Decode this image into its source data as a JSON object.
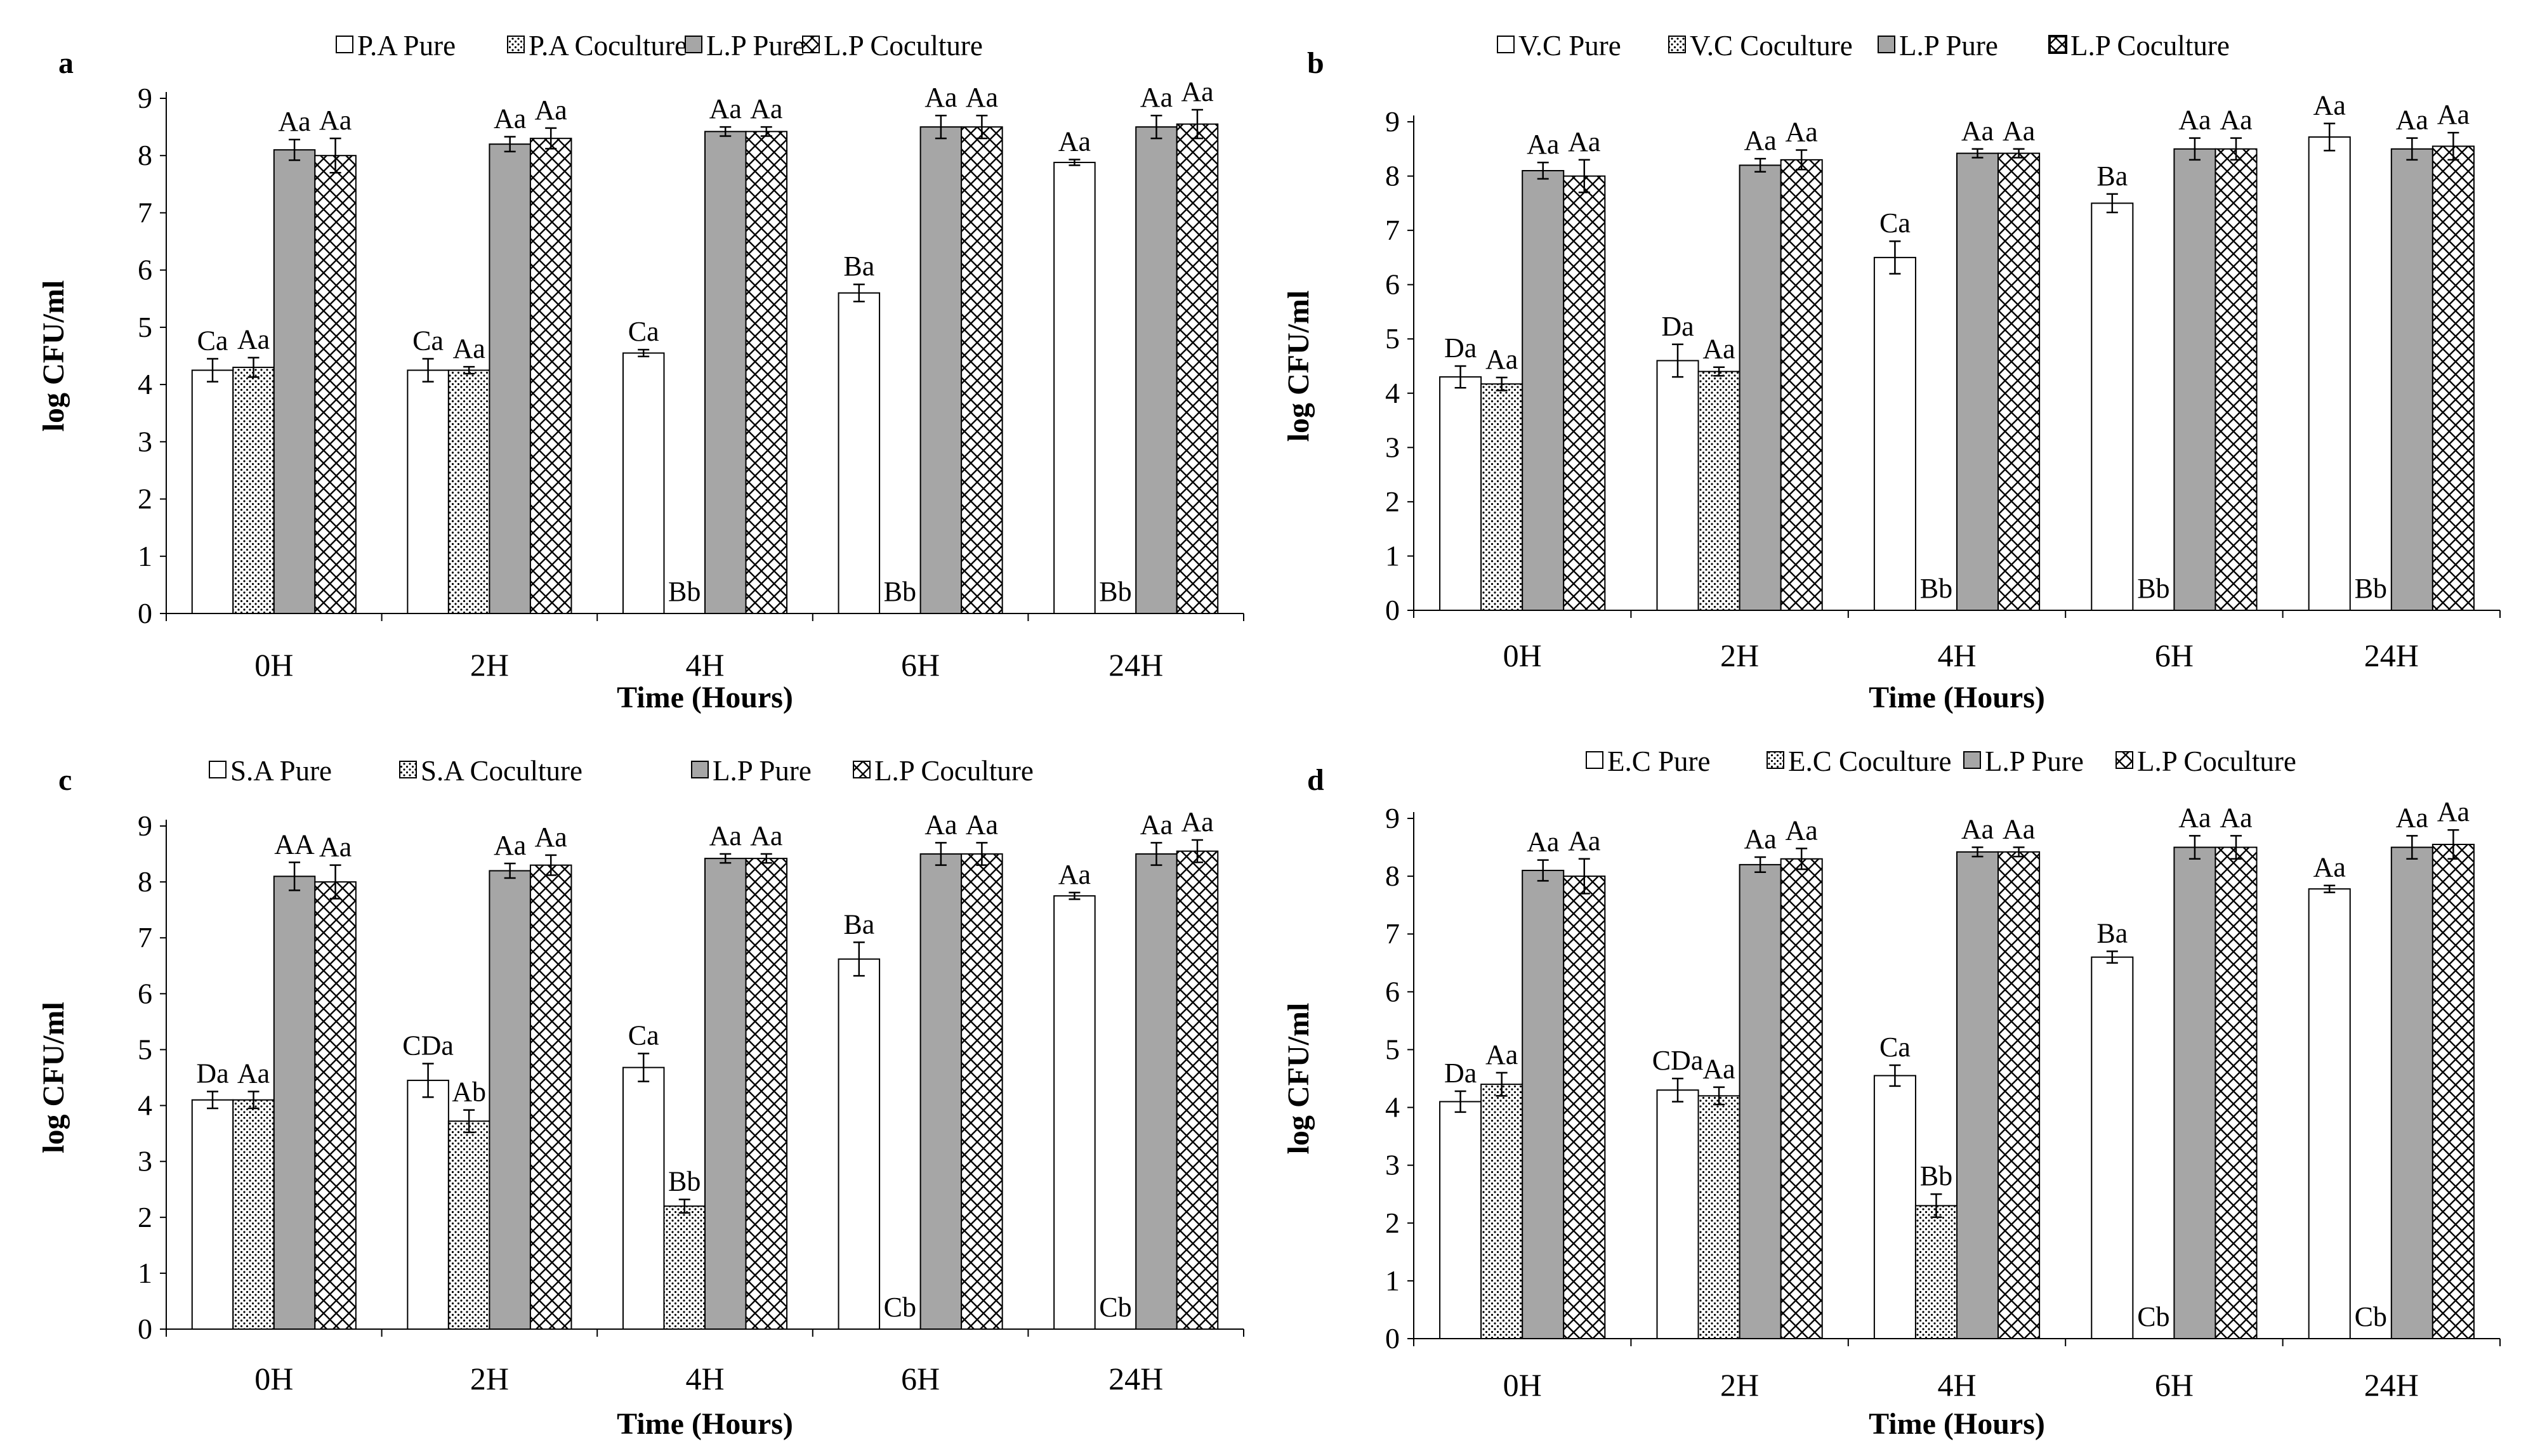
{
  "colors": {
    "lp_pure": "#a6a6a6",
    "stroke": "#000000",
    "background": "#ffffff"
  },
  "chart_data": [
    {
      "panel": "a",
      "type": "bar",
      "categories": [
        "0H",
        "2H",
        "4H",
        "6H",
        "24H"
      ],
      "xlabel": "Time (Hours)",
      "ylabel": "log CFU/ml",
      "ylim": [
        0,
        9
      ],
      "yticks": [
        "0",
        "1",
        "2",
        "3",
        "4",
        "5",
        "6",
        "7",
        "8",
        "9"
      ],
      "series": [
        {
          "name": "P.A Pure",
          "pattern": "blank",
          "values": [
            4.25,
            4.25,
            4.55,
            5.6,
            7.88
          ],
          "errors": [
            0.2,
            0.2,
            0.06,
            0.15,
            0.05
          ],
          "labels": [
            "Ca",
            "Ca",
            "Ca",
            "Ba",
            "Aa"
          ]
        },
        {
          "name": "P.A Coculture",
          "pattern": "dots",
          "values": [
            4.3,
            4.25,
            0,
            0,
            0
          ],
          "errors": [
            0.17,
            0.06,
            0,
            0,
            0
          ],
          "labels": [
            "Aa",
            "Aa",
            "Bb",
            "Bb",
            "Bb"
          ]
        },
        {
          "name": "L.P Pure",
          "pattern": "gray",
          "values": [
            8.1,
            8.2,
            8.42,
            8.5,
            8.5
          ],
          "errors": [
            0.18,
            0.13,
            0.08,
            0.2,
            0.2
          ],
          "labels": [
            "Aa",
            "Aa",
            "Aa",
            "Aa",
            "Aa"
          ]
        },
        {
          "name": "L.P Coculture",
          "pattern": "cross",
          "values": [
            8.0,
            8.3,
            8.42,
            8.5,
            8.55
          ],
          "errors": [
            0.3,
            0.18,
            0.08,
            0.2,
            0.25
          ],
          "labels": [
            "Aa",
            "Aa",
            "Aa",
            "Aa",
            "Aa"
          ]
        }
      ]
    },
    {
      "panel": "b",
      "type": "bar",
      "categories": [
        "0H",
        "2H",
        "4H",
        "6H",
        "24H"
      ],
      "xlabel": "Time (Hours)",
      "ylabel": "log CFU/ml",
      "ylim": [
        0,
        9
      ],
      "yticks": [
        "0",
        "1",
        "2",
        "3",
        "4",
        "5",
        "6",
        "7",
        "8",
        "9"
      ],
      "series": [
        {
          "name": "V.C Pure",
          "pattern": "blank",
          "values": [
            4.3,
            4.6,
            6.5,
            7.5,
            8.72
          ],
          "errors": [
            0.2,
            0.3,
            0.3,
            0.17,
            0.25
          ],
          "labels": [
            "Da",
            "Da",
            "Ca",
            "Ba",
            "Aa"
          ]
        },
        {
          "name": "V.C Coculture",
          "pattern": "dots",
          "values": [
            4.17,
            4.4,
            0,
            0,
            0
          ],
          "errors": [
            0.12,
            0.08,
            0,
            0,
            0
          ],
          "labels": [
            "Aa",
            "Aa",
            "Bb",
            "Bb",
            "Bb"
          ]
        },
        {
          "name": "L.P Pure",
          "pattern": "gray",
          "values": [
            8.1,
            8.2,
            8.42,
            8.5,
            8.5
          ],
          "errors": [
            0.15,
            0.12,
            0.08,
            0.2,
            0.2
          ],
          "labels": [
            "Aa",
            "Aa",
            "Aa",
            "Aa",
            "Aa"
          ]
        },
        {
          "name": "L.P Coculture",
          "pattern": "boxcross",
          "values": [
            8.0,
            8.3,
            8.42,
            8.5,
            8.55
          ],
          "errors": [
            0.3,
            0.18,
            0.08,
            0.2,
            0.25
          ],
          "labels": [
            "Aa",
            "Aa",
            "Aa",
            "Aa",
            "Aa"
          ]
        }
      ]
    },
    {
      "panel": "c",
      "type": "bar",
      "categories": [
        "0H",
        "2H",
        "4H",
        "6H",
        "24H"
      ],
      "xlabel": "Time (Hours)",
      "ylabel": "log CFU/ml",
      "ylim": [
        0,
        9
      ],
      "yticks": [
        "0",
        "1",
        "2",
        "3",
        "4",
        "5",
        "6",
        "7",
        "8",
        "9"
      ],
      "series": [
        {
          "name": "S.A Pure",
          "pattern": "blank",
          "values": [
            4.1,
            4.45,
            4.68,
            6.62,
            7.75
          ],
          "errors": [
            0.15,
            0.3,
            0.25,
            0.3,
            0.06
          ],
          "labels": [
            "Da",
            "CDa",
            "Ca",
            "Ba",
            "Aa"
          ]
        },
        {
          "name": "S.A Coculture",
          "pattern": "dots",
          "values": [
            4.1,
            3.72,
            2.2,
            0,
            0
          ],
          "errors": [
            0.15,
            0.2,
            0.12,
            0,
            0
          ],
          "labels": [
            "Aa",
            "Ab",
            "Bb",
            "Cb",
            "Cb"
          ]
        },
        {
          "name": "L.P Pure",
          "pattern": "gray",
          "values": [
            8.1,
            8.2,
            8.42,
            8.5,
            8.5
          ],
          "errors": [
            0.25,
            0.13,
            0.08,
            0.2,
            0.2
          ],
          "labels": [
            "AA",
            "Aa",
            "Aa",
            "Aa",
            "Aa"
          ]
        },
        {
          "name": "L.P Coculture",
          "pattern": "cross",
          "values": [
            8.0,
            8.3,
            8.42,
            8.5,
            8.55
          ],
          "errors": [
            0.3,
            0.18,
            0.08,
            0.2,
            0.2
          ],
          "labels": [
            "Aa",
            "Aa",
            "Aa",
            "Aa",
            "Aa"
          ]
        }
      ]
    },
    {
      "panel": "d",
      "type": "bar",
      "categories": [
        "0H",
        "2H",
        "4H",
        "6H",
        "24H"
      ],
      "xlabel": "Time (Hours)",
      "ylabel": "log CFU/ml",
      "ylim": [
        0,
        9
      ],
      "yticks": [
        "0",
        "1",
        "2",
        "3",
        "4",
        "5",
        "6",
        "7",
        "8",
        "9"
      ],
      "series": [
        {
          "name": "E.C Pure",
          "pattern": "blank",
          "values": [
            4.1,
            4.3,
            4.55,
            6.6,
            7.78
          ],
          "errors": [
            0.18,
            0.2,
            0.18,
            0.1,
            0.06
          ],
          "labels": [
            "Da",
            "CDa",
            "Ca",
            "Ba",
            "Aa"
          ]
        },
        {
          "name": "E.C Coculture",
          "pattern": "dots",
          "values": [
            4.4,
            4.2,
            2.3,
            0,
            0
          ],
          "errors": [
            0.2,
            0.15,
            0.2,
            0,
            0
          ],
          "labels": [
            "Aa",
            "Aa",
            "Bb",
            "Cb",
            "Cb"
          ]
        },
        {
          "name": "L.P Pure",
          "pattern": "gray",
          "values": [
            8.1,
            8.2,
            8.42,
            8.5,
            8.5
          ],
          "errors": [
            0.18,
            0.13,
            0.08,
            0.2,
            0.2
          ],
          "labels": [
            "Aa",
            "Aa",
            "Aa",
            "Aa",
            "Aa"
          ]
        },
        {
          "name": "L.P Coculture",
          "pattern": "cross",
          "values": [
            8.0,
            8.3,
            8.42,
            8.5,
            8.55
          ],
          "errors": [
            0.3,
            0.18,
            0.08,
            0.2,
            0.25
          ],
          "labels": [
            "Aa",
            "Aa",
            "Aa",
            "Aa",
            "Aa"
          ]
        }
      ]
    }
  ]
}
